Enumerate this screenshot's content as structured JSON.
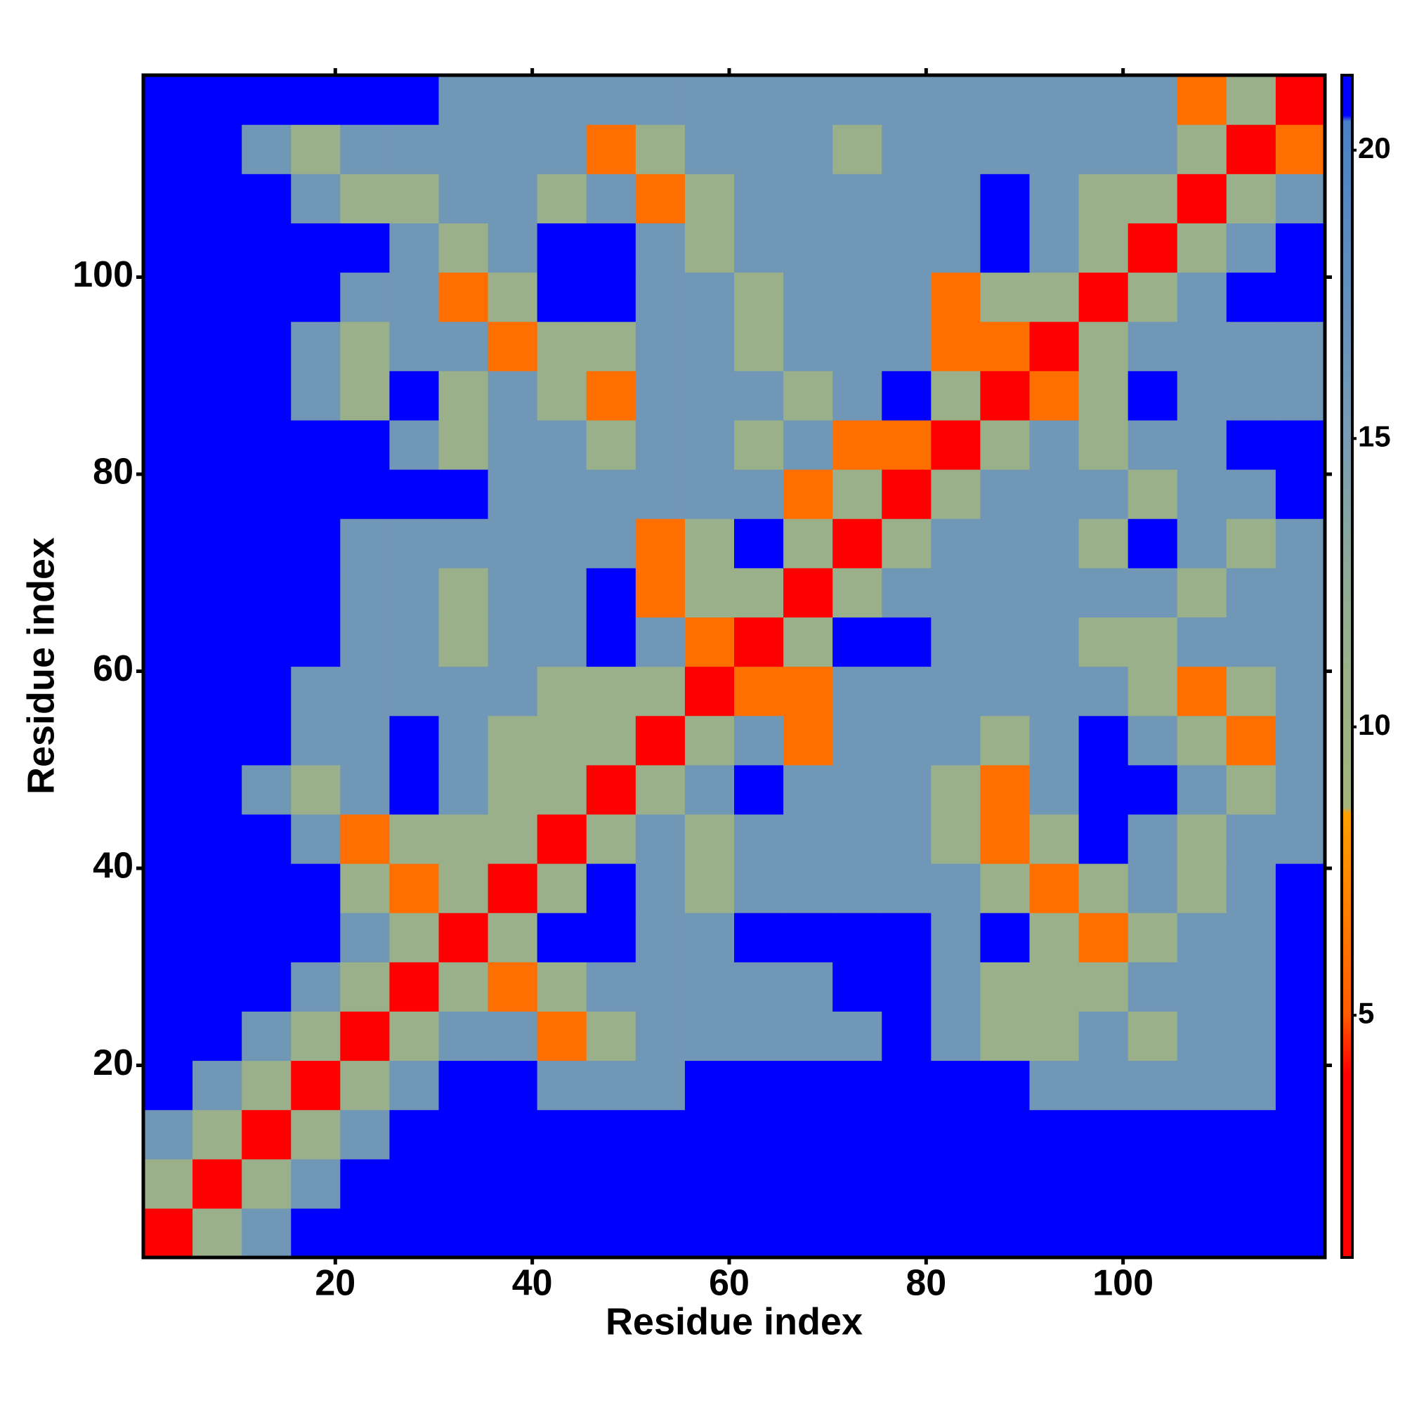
{
  "chart_data": {
    "type": "heatmap",
    "xlabel": "Residue index",
    "ylabel": "Residue index",
    "x": [
      3,
      8,
      13,
      18,
      23,
      28,
      33,
      38,
      43,
      48,
      53,
      58,
      63,
      68,
      73,
      78,
      83,
      88,
      93,
      98,
      103,
      108,
      113,
      118
    ],
    "y": [
      3,
      8,
      13,
      18,
      23,
      28,
      33,
      38,
      43,
      48,
      53,
      58,
      63,
      68,
      73,
      78,
      83,
      88,
      93,
      98,
      103,
      108,
      113,
      118
    ],
    "z": [
      [
        2,
        11,
        16,
        21,
        21,
        21,
        21,
        21,
        21,
        21,
        21,
        21,
        21,
        21,
        21,
        21,
        21,
        21,
        21,
        21,
        21,
        21,
        21,
        21
      ],
      [
        11,
        2,
        11,
        16,
        21,
        21,
        21,
        21,
        21,
        21,
        21,
        21,
        21,
        21,
        21,
        21,
        21,
        21,
        21,
        21,
        21,
        21,
        21,
        21
      ],
      [
        16,
        11,
        2,
        11,
        16,
        21,
        21,
        21,
        21,
        21,
        21,
        21,
        21,
        21,
        21,
        21,
        21,
        21,
        21,
        21,
        21,
        21,
        21,
        21
      ],
      [
        21,
        16,
        11,
        2,
        11,
        16,
        21,
        21,
        16,
        16,
        16,
        21,
        21,
        21,
        21,
        21,
        21,
        21,
        16,
        16,
        16,
        16,
        16,
        21
      ],
      [
        21,
        21,
        16,
        11,
        2,
        11,
        16,
        16,
        6,
        11,
        16,
        16,
        16,
        16,
        16,
        21,
        16,
        11,
        11,
        16,
        11,
        16,
        16,
        21
      ],
      [
        21,
        21,
        21,
        16,
        11,
        2,
        11,
        6,
        11,
        16,
        16,
        16,
        16,
        16,
        21,
        21,
        16,
        11,
        11,
        11,
        16,
        16,
        16,
        21
      ],
      [
        21,
        21,
        21,
        21,
        16,
        11,
        2,
        11,
        21,
        21,
        16,
        16,
        21,
        21,
        21,
        21,
        16,
        21,
        11,
        6,
        11,
        16,
        16,
        21
      ],
      [
        21,
        21,
        21,
        21,
        11,
        6,
        11,
        2,
        11,
        21,
        16,
        11,
        16,
        16,
        16,
        16,
        16,
        11,
        6,
        11,
        16,
        11,
        16,
        21
      ],
      [
        21,
        21,
        21,
        16,
        6,
        11,
        11,
        11,
        2,
        11,
        16,
        11,
        16,
        16,
        16,
        16,
        11,
        6,
        11,
        21,
        16,
        11,
        16,
        16
      ],
      [
        21,
        21,
        16,
        11,
        16,
        21,
        16,
        11,
        11,
        2,
        11,
        16,
        21,
        16,
        16,
        16,
        11,
        6,
        16,
        21,
        21,
        16,
        11,
        16
      ],
      [
        21,
        21,
        21,
        16,
        16,
        21,
        16,
        11,
        11,
        11,
        2,
        11,
        16,
        6,
        16,
        16,
        16,
        11,
        16,
        21,
        16,
        11,
        6,
        16
      ],
      [
        21,
        21,
        21,
        16,
        16,
        16,
        16,
        16,
        11,
        11,
        11,
        2,
        6,
        6,
        16,
        16,
        16,
        16,
        16,
        16,
        11,
        6,
        11,
        16
      ],
      [
        21,
        21,
        21,
        21,
        16,
        16,
        11,
        16,
        16,
        21,
        16,
        6,
        2,
        11,
        21,
        21,
        16,
        16,
        16,
        11,
        11,
        16,
        16,
        16
      ],
      [
        21,
        21,
        21,
        21,
        16,
        16,
        11,
        16,
        16,
        21,
        6,
        11,
        11,
        2,
        11,
        16,
        16,
        16,
        16,
        16,
        16,
        11,
        16,
        16
      ],
      [
        21,
        21,
        21,
        21,
        16,
        16,
        16,
        16,
        16,
        16,
        6,
        11,
        21,
        11,
        2,
        11,
        16,
        16,
        16,
        11,
        21,
        16,
        11,
        16
      ],
      [
        21,
        21,
        21,
        21,
        21,
        21,
        21,
        16,
        16,
        16,
        16,
        16,
        16,
        6,
        11,
        2,
        11,
        16,
        16,
        16,
        11,
        16,
        16,
        21
      ],
      [
        21,
        21,
        21,
        21,
        21,
        16,
        11,
        16,
        16,
        11,
        16,
        16,
        11,
        16,
        6,
        6,
        2,
        11,
        16,
        11,
        16,
        16,
        21,
        21
      ],
      [
        21,
        21,
        21,
        16,
        11,
        21,
        11,
        16,
        11,
        6,
        16,
        16,
        16,
        11,
        16,
        21,
        11,
        2,
        6,
        11,
        21,
        16,
        16,
        16
      ],
      [
        21,
        21,
        21,
        16,
        11,
        16,
        16,
        6,
        11,
        11,
        16,
        16,
        11,
        16,
        16,
        16,
        6,
        6,
        2,
        11,
        16,
        16,
        16,
        16
      ],
      [
        21,
        21,
        21,
        21,
        16,
        16,
        6,
        11,
        21,
        21,
        16,
        16,
        11,
        16,
        16,
        16,
        6,
        11,
        11,
        2,
        11,
        16,
        21,
        21
      ],
      [
        21,
        21,
        21,
        21,
        21,
        16,
        11,
        16,
        21,
        21,
        16,
        11,
        16,
        16,
        16,
        16,
        16,
        21,
        16,
        11,
        2,
        11,
        16,
        21
      ],
      [
        21,
        21,
        21,
        16,
        11,
        11,
        16,
        16,
        11,
        16,
        6,
        11,
        16,
        16,
        16,
        16,
        16,
        21,
        16,
        11,
        11,
        2,
        11,
        16
      ],
      [
        21,
        21,
        16,
        11,
        16,
        16,
        16,
        16,
        16,
        6,
        11,
        16,
        16,
        16,
        11,
        16,
        16,
        16,
        16,
        16,
        16,
        11,
        2,
        6
      ],
      [
        21,
        21,
        21,
        21,
        21,
        21,
        16,
        16,
        16,
        16,
        16,
        16,
        16,
        16,
        16,
        16,
        16,
        16,
        16,
        16,
        16,
        6,
        11,
        2
      ]
    ],
    "xlim": [
      0.5,
      120.5
    ],
    "ylim": [
      0.5,
      120.5
    ],
    "xticks": [
      20,
      40,
      60,
      80,
      100
    ],
    "yticks": [
      20,
      40,
      60,
      80,
      100
    ],
    "clim": [
      0.8,
      21.3
    ],
    "cticks": [
      5,
      10,
      15,
      20
    ],
    "colorscale": [
      [
        0.8,
        "#ff0000"
      ],
      [
        4,
        "#ff0000"
      ],
      [
        5,
        "#ff5a00"
      ],
      [
        8.5,
        "#ffa000"
      ],
      [
        8.6,
        "#a4b47c"
      ],
      [
        12,
        "#94ae90"
      ],
      [
        15,
        "#7a9cb4"
      ],
      [
        20.5,
        "#4a80c4"
      ],
      [
        20.6,
        "#0000ff"
      ],
      [
        21.3,
        "#0000ff"
      ]
    ]
  }
}
